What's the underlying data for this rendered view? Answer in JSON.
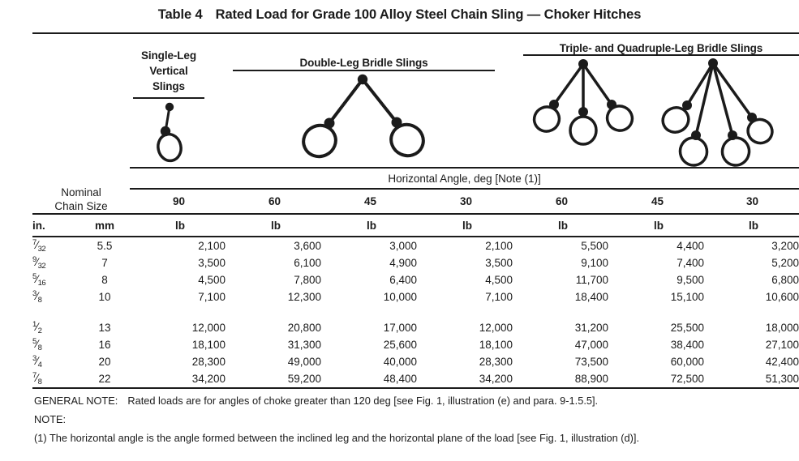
{
  "title": {
    "label": "Table 4",
    "text": "Rated Load for Grade 100 Alloy Steel Chain Sling — Choker Hitches"
  },
  "sling_groups": {
    "single": {
      "lines": [
        "Single-Leg",
        "Vertical",
        "Slings"
      ]
    },
    "double": {
      "label": "Double-Leg Bridle Slings"
    },
    "triple_quad": {
      "label": "Triple- and Quadruple-Leg Bridle Slings"
    }
  },
  "table": {
    "left_header": [
      "Nominal",
      "Chain Size"
    ],
    "span_header": "Horizontal Angle, deg [Note (1)]",
    "angle_columns": [
      "90",
      "60",
      "45",
      "30",
      "60",
      "45",
      "30"
    ],
    "unit_row": {
      "in": "in.",
      "mm": "mm",
      "load": "lb"
    },
    "row_groups": [
      {
        "rows": [
          {
            "size_in": {
              "num": "7",
              "den": "32"
            },
            "size_mm": "5.5",
            "loads": [
              "2,100",
              "3,600",
              "3,000",
              "2,100",
              "5,500",
              "4,400",
              "3,200"
            ]
          },
          {
            "size_in": {
              "num": "9",
              "den": "32"
            },
            "size_mm": "7",
            "loads": [
              "3,500",
              "6,100",
              "4,900",
              "3,500",
              "9,100",
              "7,400",
              "5,200"
            ]
          },
          {
            "size_in": {
              "num": "5",
              "den": "16"
            },
            "size_mm": "8",
            "loads": [
              "4,500",
              "7,800",
              "6,400",
              "4,500",
              "11,700",
              "9,500",
              "6,800"
            ]
          },
          {
            "size_in": {
              "num": "3",
              "den": "8"
            },
            "size_mm": "10",
            "loads": [
              "7,100",
              "12,300",
              "10,000",
              "7,100",
              "18,400",
              "15,100",
              "10,600"
            ]
          }
        ]
      },
      {
        "rows": [
          {
            "size_in": {
              "num": "1",
              "den": "2"
            },
            "size_mm": "13",
            "loads": [
              "12,000",
              "20,800",
              "17,000",
              "12,000",
              "31,200",
              "25,500",
              "18,000"
            ]
          },
          {
            "size_in": {
              "num": "5",
              "den": "8"
            },
            "size_mm": "16",
            "loads": [
              "18,100",
              "31,300",
              "25,600",
              "18,100",
              "47,000",
              "38,400",
              "27,100"
            ]
          },
          {
            "size_in": {
              "num": "3",
              "den": "4"
            },
            "size_mm": "20",
            "loads": [
              "28,300",
              "49,000",
              "40,000",
              "28,300",
              "73,500",
              "60,000",
              "42,400"
            ]
          },
          {
            "size_in": {
              "num": "7",
              "den": "8"
            },
            "size_mm": "22",
            "loads": [
              "34,200",
              "59,200",
              "48,400",
              "34,200",
              "88,900",
              "72,500",
              "51,300"
            ]
          }
        ]
      }
    ]
  },
  "notes": {
    "general_label": "GENERAL NOTE:",
    "general_text": "Rated loads are for angles of choke greater than 120 deg [see Fig. 1, illustration (e) and para. 9-1.5.5].",
    "note_label": "NOTE:",
    "note1": "(1)  The horizontal angle is the angle formed between the inclined leg and the horizontal plane of the load [see Fig. 1, illustration (d)]."
  },
  "colors": {
    "text": "#1b1b1b",
    "rule": "#1b1b1b",
    "background": "#ffffff"
  }
}
